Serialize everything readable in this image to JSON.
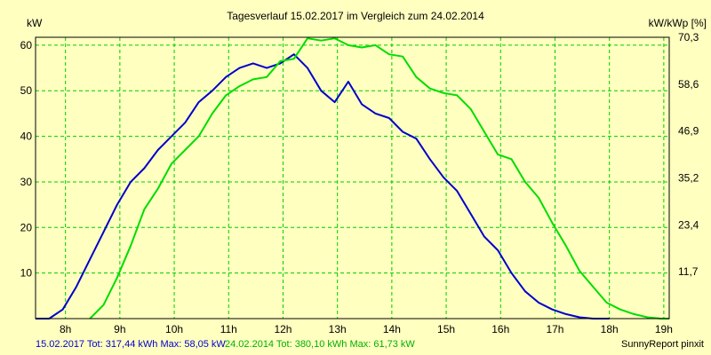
{
  "chart_data": {
    "type": "line",
    "title": "Tagesverlauf 15.02.2017 im Vergleich zum 24.02.2014",
    "ylabel_left": "kW",
    "ylabel_right": "kW/kWp [%]",
    "xlim": [
      7.45,
      19.1
    ],
    "ylim": [
      0,
      61.73
    ],
    "x_ticks": [
      {
        "x": 8,
        "label": "8h"
      },
      {
        "x": 9,
        "label": "9h"
      },
      {
        "x": 10,
        "label": "10h"
      },
      {
        "x": 11,
        "label": "11h"
      },
      {
        "x": 12,
        "label": "12h"
      },
      {
        "x": 13,
        "label": "13h"
      },
      {
        "x": 14,
        "label": "14h"
      },
      {
        "x": 15,
        "label": "15h"
      },
      {
        "x": 16,
        "label": "16h"
      },
      {
        "x": 17,
        "label": "17h"
      },
      {
        "x": 18,
        "label": "18h"
      },
      {
        "x": 19,
        "label": "19h"
      }
    ],
    "y_ticks_left": [
      {
        "y": 10,
        "label": "10"
      },
      {
        "y": 20,
        "label": "20"
      },
      {
        "y": 30,
        "label": "30"
      },
      {
        "y": 40,
        "label": "40"
      },
      {
        "y": 50,
        "label": "50"
      },
      {
        "y": 60,
        "label": "60"
      }
    ],
    "y_ticks_right": [
      {
        "y": 10.29,
        "label": "11,7"
      },
      {
        "y": 20.58,
        "label": "23,4"
      },
      {
        "y": 30.87,
        "label": "35,2"
      },
      {
        "y": 41.16,
        "label": "46,9"
      },
      {
        "y": 51.45,
        "label": "58,6"
      },
      {
        "y": 61.73,
        "label": "70,3"
      }
    ],
    "grid": true,
    "series": [
      {
        "color": "#0000cc",
        "points": [
          [
            7.45,
            0
          ],
          [
            7.7,
            0
          ],
          [
            7.95,
            2
          ],
          [
            8.2,
            7
          ],
          [
            8.45,
            13
          ],
          [
            8.7,
            19
          ],
          [
            8.95,
            25
          ],
          [
            9.2,
            30
          ],
          [
            9.45,
            33
          ],
          [
            9.7,
            37
          ],
          [
            9.95,
            40
          ],
          [
            10.2,
            43
          ],
          [
            10.45,
            47.5
          ],
          [
            10.7,
            50
          ],
          [
            10.95,
            53
          ],
          [
            11.2,
            55
          ],
          [
            11.45,
            56
          ],
          [
            11.7,
            55
          ],
          [
            11.95,
            56
          ],
          [
            12.2,
            58
          ],
          [
            12.45,
            55
          ],
          [
            12.7,
            50
          ],
          [
            12.95,
            47.5
          ],
          [
            13.2,
            52
          ],
          [
            13.45,
            47
          ],
          [
            13.7,
            45
          ],
          [
            13.95,
            44
          ],
          [
            14.2,
            41
          ],
          [
            14.45,
            39.5
          ],
          [
            14.7,
            35
          ],
          [
            14.95,
            31
          ],
          [
            15.2,
            28
          ],
          [
            15.45,
            23
          ],
          [
            15.7,
            18
          ],
          [
            15.95,
            15
          ],
          [
            16.2,
            10
          ],
          [
            16.45,
            6
          ],
          [
            16.7,
            3.5
          ],
          [
            16.95,
            2
          ],
          [
            17.2,
            1
          ],
          [
            17.45,
            0.3
          ],
          [
            17.7,
            0
          ],
          [
            18.0,
            0
          ]
        ]
      },
      {
        "color": "#00dd00",
        "points": [
          [
            8.45,
            0
          ],
          [
            8.7,
            3
          ],
          [
            8.95,
            9
          ],
          [
            9.2,
            16
          ],
          [
            9.45,
            24
          ],
          [
            9.7,
            28.5
          ],
          [
            9.95,
            34
          ],
          [
            10.2,
            37
          ],
          [
            10.45,
            40
          ],
          [
            10.7,
            45
          ],
          [
            10.95,
            49
          ],
          [
            11.2,
            51
          ],
          [
            11.45,
            52.5
          ],
          [
            11.7,
            53
          ],
          [
            11.95,
            56.5
          ],
          [
            12.2,
            57
          ],
          [
            12.45,
            61.5
          ],
          [
            12.7,
            61
          ],
          [
            12.95,
            61.5
          ],
          [
            13.2,
            60
          ],
          [
            13.45,
            59.5
          ],
          [
            13.7,
            60
          ],
          [
            13.95,
            58
          ],
          [
            14.2,
            57.5
          ],
          [
            14.45,
            53
          ],
          [
            14.7,
            50.5
          ],
          [
            14.95,
            49.5
          ],
          [
            15.2,
            49
          ],
          [
            15.45,
            46
          ],
          [
            15.7,
            41
          ],
          [
            15.95,
            36
          ],
          [
            16.2,
            35
          ],
          [
            16.45,
            30
          ],
          [
            16.7,
            26.5
          ],
          [
            16.95,
            21
          ],
          [
            17.2,
            16
          ],
          [
            17.45,
            10.5
          ],
          [
            17.7,
            7
          ],
          [
            17.95,
            3.5
          ],
          [
            18.2,
            2
          ],
          [
            18.45,
            1
          ],
          [
            18.7,
            0.3
          ],
          [
            18.95,
            0
          ],
          [
            19.1,
            0
          ]
        ]
      }
    ],
    "footer": {
      "series1": "15.02.2017 Tot: 317,44 kWh Max: 58,05 kW",
      "series2": "24.02.2014 Tot: 380,10 kWh Max: 61,73 kW",
      "credit": "SunnyReport pinxit"
    }
  }
}
